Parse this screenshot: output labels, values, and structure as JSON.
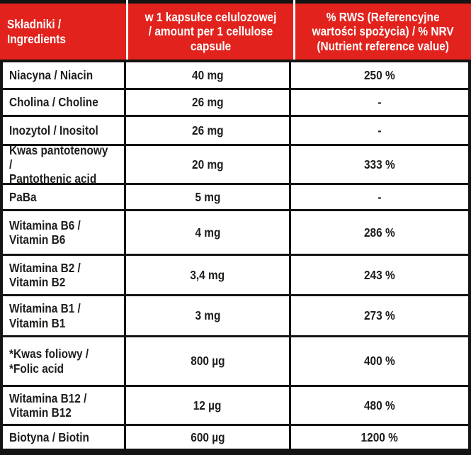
{
  "colors": {
    "header_bg": "#e2231d",
    "header_text": "#ffffff",
    "border": "#141414",
    "body_text": "#1d1d1b"
  },
  "table": {
    "header": {
      "ingredients": "Składniki /\nIngredients",
      "amount": "w 1 kapsułce celulozowej\n/ amount per 1 cellulose\ncapsule",
      "rws": "% RWS (Referencyjne\nwartości spożycia) / % NRV\n(Nutrient reference value)"
    },
    "rows": [
      {
        "name": "Niacyna / Niacin",
        "amount": "40 mg",
        "rws": "250 %"
      },
      {
        "name": "Cholina / Choline",
        "amount": "26 mg",
        "rws": "-"
      },
      {
        "name": "Inozytol / Inositol",
        "amount": "26 mg",
        "rws": "-"
      },
      {
        "name": "Kwas pantotenowy /\nPantothenic acid",
        "amount": "20 mg",
        "rws": "333 %"
      },
      {
        "name": "PaBa",
        "amount": "5 mg",
        "rws": "-"
      },
      {
        "name": "Witamina B6 /\nVitamin B6",
        "amount": "4 mg",
        "rws": "286 %"
      },
      {
        "name": "Witamina B2 /\nVitamin B2",
        "amount": "3,4 mg",
        "rws": "243 %"
      },
      {
        "name": "Witamina B1 /\nVitamin B1",
        "amount": "3 mg",
        "rws": "273 %"
      },
      {
        "name": "*Kwas foliowy /\n*Folic acid",
        "amount": "800 µg",
        "rws": "400 %"
      },
      {
        "name": "Witamina B12 /\nVitamin B12",
        "amount": "12 µg",
        "rws": "480 %"
      },
      {
        "name": "Biotyna / Biotin",
        "amount": "600 µg",
        "rws": "1200 %"
      }
    ]
  }
}
